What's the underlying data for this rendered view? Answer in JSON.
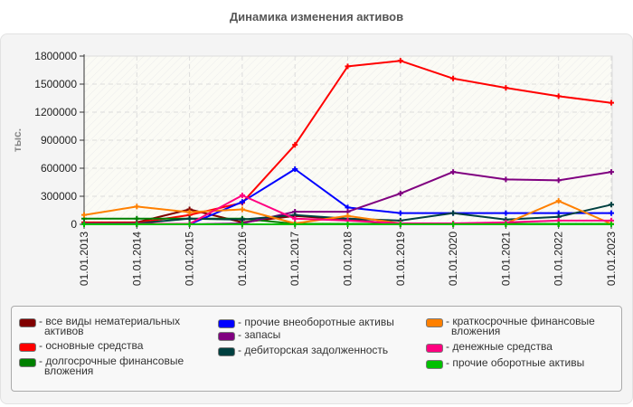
{
  "title": "Динамика изменения активов",
  "chart_data": {
    "type": "line",
    "title": "Динамика изменения активов",
    "xlabel": "",
    "ylabel": "тыс.",
    "ylim": [
      0,
      1800000
    ],
    "yticks": [
      0,
      300000,
      600000,
      900000,
      1200000,
      1500000,
      1800000
    ],
    "grid": true,
    "legend_position": "bottom",
    "categories": [
      "01.01.2013",
      "01.01.2014",
      "01.01.2015",
      "01.01.2016",
      "01.01.2017",
      "01.01.2018",
      "01.01.2019",
      "01.01.2020",
      "01.01.2021",
      "01.01.2022",
      "01.01.2023"
    ],
    "series": [
      {
        "name": "все виды нематериальных активов",
        "color": "#800000",
        "values": [
          20000,
          20000,
          160000,
          20000,
          90000,
          50000,
          0,
          0,
          0,
          0,
          0
        ]
      },
      {
        "name": "основные средства",
        "color": "#ff0000",
        "values": [
          18000,
          15000,
          100000,
          230000,
          850000,
          1690000,
          1750000,
          1560000,
          1460000,
          1370000,
          1300000
        ]
      },
      {
        "name": "долгосрочные финансовые вложения",
        "color": "#008000",
        "values": [
          60000,
          60000,
          60000,
          60000,
          5000,
          5000,
          5000,
          5000,
          5000,
          5000,
          5000
        ]
      },
      {
        "name": "прочие внеоборотные активы",
        "color": "#0000ff",
        "values": [
          0,
          0,
          0,
          240000,
          590000,
          180000,
          120000,
          120000,
          120000,
          120000,
          120000
        ]
      },
      {
        "name": "запасы",
        "color": "#800080",
        "values": [
          0,
          0,
          0,
          10000,
          135000,
          135000,
          330000,
          560000,
          480000,
          470000,
          560000
        ]
      },
      {
        "name": "дебиторская задолженность",
        "color": "#004040",
        "values": [
          10000,
          10000,
          60000,
          50000,
          100000,
          60000,
          40000,
          120000,
          50000,
          80000,
          210000
        ]
      },
      {
        "name": "краткосрочные финансовые вложения",
        "color": "#ff8000",
        "values": [
          100000,
          190000,
          130000,
          160000,
          10000,
          90000,
          10000,
          5000,
          10000,
          250000,
          5000
        ]
      },
      {
        "name": "денежные средства",
        "color": "#ff0080",
        "values": [
          5000,
          5000,
          5000,
          310000,
          60000,
          40000,
          10000,
          10000,
          20000,
          40000,
          40000
        ]
      },
      {
        "name": "прочие оборотные активы",
        "color": "#00c000",
        "values": [
          0,
          0,
          0,
          0,
          0,
          0,
          0,
          0,
          0,
          0,
          0
        ]
      }
    ]
  },
  "axis": {
    "ylabel": "тыс.",
    "yticks": [
      "0",
      "300000",
      "600000",
      "900000",
      "1200000",
      "1500000",
      "1800000"
    ],
    "xticks": [
      "01.01.2013",
      "01.01.2014",
      "01.01.2015",
      "01.01.2016",
      "01.01.2017",
      "01.01.2018",
      "01.01.2019",
      "01.01.2020",
      "01.01.2021",
      "01.01.2022",
      "01.01.2023"
    ]
  },
  "legend": {
    "items": [
      {
        "label": "- все виды нематериальных",
        "label2": "активов",
        "color": "#800000"
      },
      {
        "label": "- основные средства",
        "label2": "",
        "color": "#ff0000"
      },
      {
        "label": "- долгосрочные финансовые",
        "label2": "вложения",
        "color": "#008000"
      },
      {
        "label": "- прочие внеоборотные активы",
        "label2": "",
        "color": "#0000ff"
      },
      {
        "label": "- запасы",
        "label2": "",
        "color": "#800080"
      },
      {
        "label": "- дебиторская задолженность",
        "label2": "",
        "color": "#004040"
      },
      {
        "label": "- краткосрочные финансовые",
        "label2": "вложения",
        "color": "#ff8000"
      },
      {
        "label": "- денежные средства",
        "label2": "",
        "color": "#ff0080"
      },
      {
        "label": "- прочие оборотные активы",
        "label2": "",
        "color": "#00c000"
      }
    ]
  }
}
